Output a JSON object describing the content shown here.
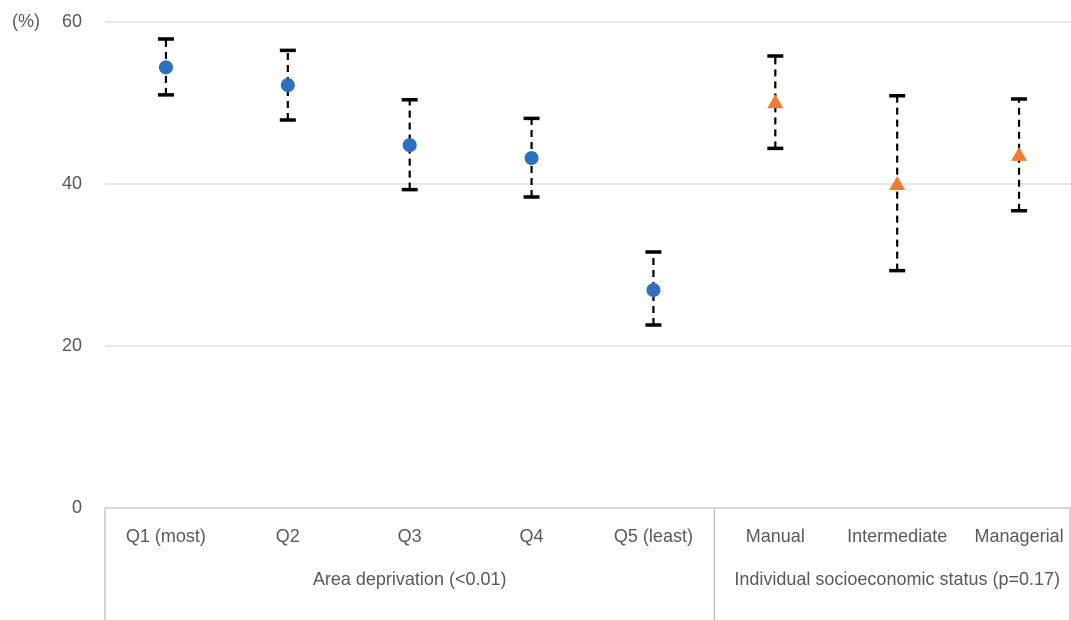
{
  "chart_data": {
    "type": "errorbar",
    "y_label": "(%)",
    "ylim": [
      0,
      60
    ],
    "yticks": [
      0,
      20,
      40,
      60
    ],
    "grid": true,
    "groups": [
      {
        "label": "Area deprivation (<0.01)",
        "color": "#2e6fc0",
        "marker": "circle",
        "categories": [
          "Q1 (most)",
          "Q2",
          "Q3",
          "Q4",
          "Q5 (least)"
        ],
        "values": [
          54.4,
          52.2,
          44.8,
          43.2,
          26.9
        ],
        "lower": [
          51.0,
          47.9,
          39.3,
          38.4,
          22.6
        ],
        "upper": [
          57.9,
          56.5,
          50.4,
          48.1,
          31.6
        ]
      },
      {
        "label": "Individual socioeconomic status (p=0.17)",
        "color": "#ed7d31",
        "marker": "triangle",
        "categories": [
          "Manual",
          "Intermediate",
          "Managerial"
        ],
        "values": [
          50.1,
          40.0,
          43.6
        ],
        "lower": [
          44.4,
          29.3,
          36.7
        ],
        "upper": [
          55.8,
          50.9,
          50.5
        ]
      }
    ]
  }
}
